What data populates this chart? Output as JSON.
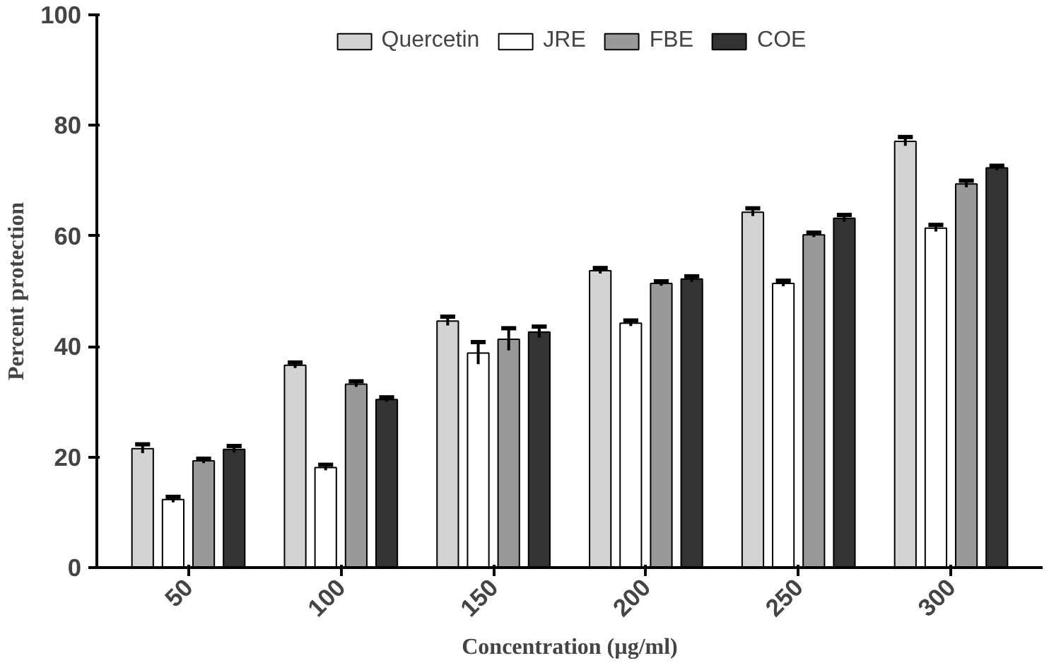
{
  "chart_data": {
    "type": "bar",
    "xlabel": "Concentration (µg/ml)",
    "ylabel": "Percent protection",
    "categories": [
      "50",
      "100",
      "150",
      "200",
      "250",
      "300"
    ],
    "series": [
      {
        "name": "Quercetin",
        "color": "#d3d3d3",
        "values": [
          21.5,
          36.6,
          44.6,
          53.7,
          64.3,
          77.1
        ],
        "errors": [
          0.8,
          0.5,
          0.8,
          0.5,
          0.7,
          0.8
        ]
      },
      {
        "name": "JRE",
        "color": "#ffffff",
        "values": [
          12.3,
          18.1,
          38.8,
          44.2,
          51.4,
          61.4
        ],
        "errors": [
          0.5,
          0.5,
          2.0,
          0.5,
          0.5,
          0.6
        ]
      },
      {
        "name": "FBE",
        "color": "#999999",
        "values": [
          19.3,
          33.2,
          41.3,
          51.4,
          60.2,
          69.4
        ],
        "errors": [
          0.4,
          0.5,
          2.0,
          0.4,
          0.4,
          0.6
        ]
      },
      {
        "name": "COE",
        "color": "#333333",
        "values": [
          21.4,
          30.4,
          42.6,
          52.2,
          63.2,
          72.3
        ],
        "errors": [
          0.6,
          0.4,
          1.0,
          0.5,
          0.6,
          0.4
        ]
      }
    ],
    "ylim": [
      0,
      100
    ],
    "yticks": [
      0,
      20,
      40,
      60,
      80,
      100
    ],
    "grid": false,
    "legend": "top"
  }
}
